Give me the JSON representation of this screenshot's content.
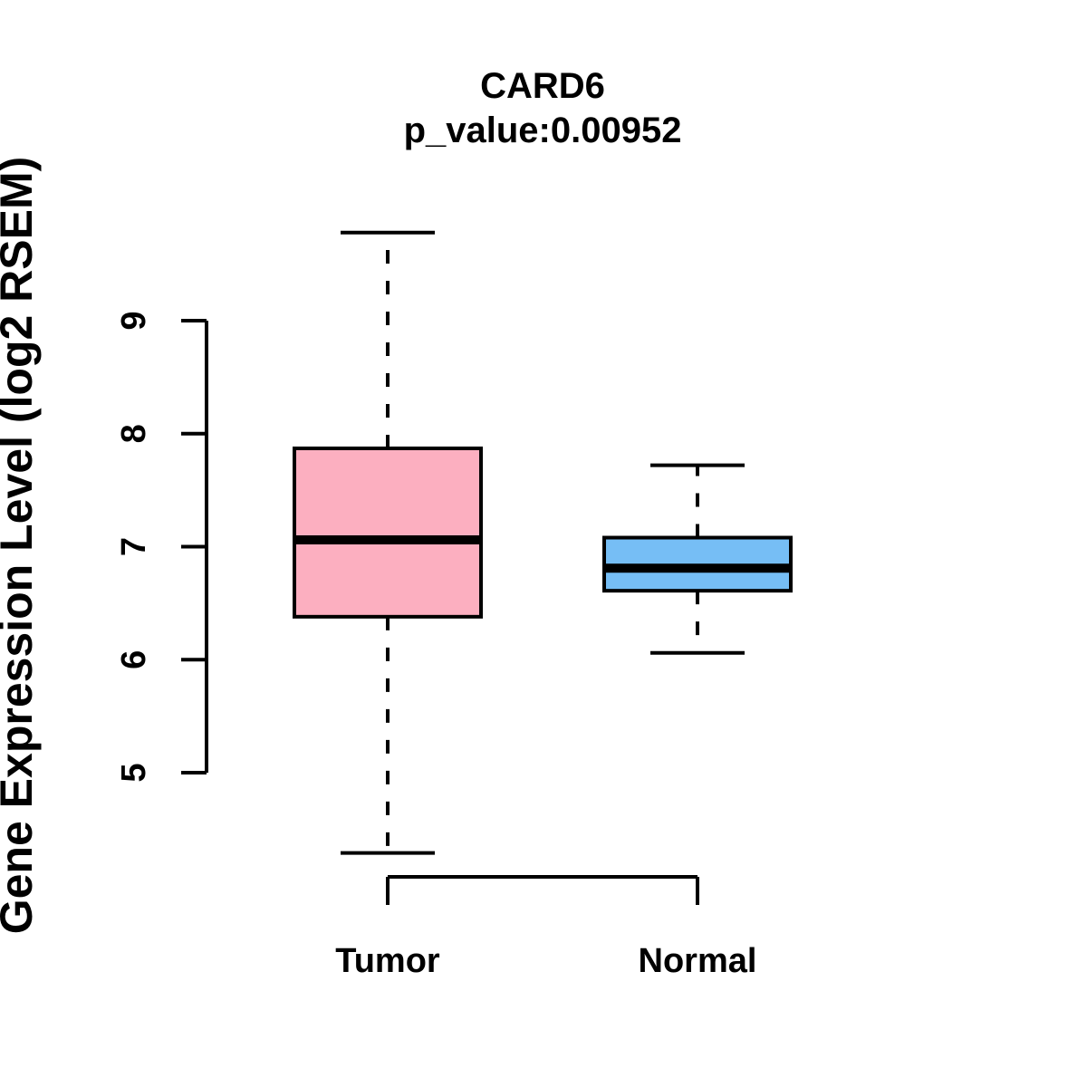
{
  "chart_data": {
    "type": "boxplot",
    "title": "CARD6",
    "subtitle": "p_value:0.00952",
    "ylabel": "Gene Expression Level (log2 RSEM)",
    "xlabel": "",
    "categories": [
      "Tumor",
      "Normal"
    ],
    "y_ticks": [
      5,
      6,
      7,
      8,
      9
    ],
    "ylim": [
      4.2,
      9.9
    ],
    "grid": false,
    "legend": "none",
    "colors": {
      "tumor_box": "#FCAFC0",
      "normal_box": "#76BEF5",
      "stroke": "#000000",
      "background": "#FFFFFF"
    },
    "series": [
      {
        "name": "Tumor",
        "box_color": "#FCAFC0",
        "whisker_low": 4.29,
        "q1": 6.38,
        "median": 7.06,
        "q3": 7.87,
        "whisker_high": 9.78
      },
      {
        "name": "Normal",
        "box_color": "#76BEF5",
        "whisker_low": 6.06,
        "q1": 6.61,
        "median": 6.81,
        "q3": 7.08,
        "whisker_high": 7.72
      }
    ]
  }
}
